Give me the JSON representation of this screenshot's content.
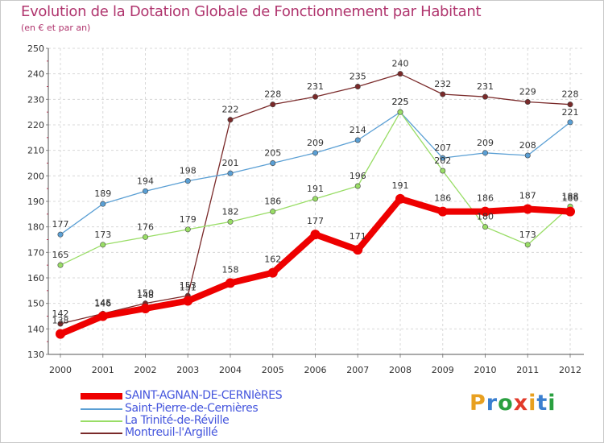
{
  "title": "Evolution de la Dotation Globale de Fonctionnement par Habitant",
  "subtitle": "(en € et par an)",
  "logo": {
    "text": "Proxiti",
    "colors": [
      "#e8a020",
      "#3a7fd0",
      "#2aa040",
      "#e23a2a",
      "#e8a020",
      "#3a7fd0",
      "#2aa040"
    ]
  },
  "chart_data": {
    "type": "line",
    "title": "Evolution de la Dotation Globale de Fonctionnement par Habitant",
    "ylabel": "(en € et par an)",
    "xlabel": "",
    "categories": [
      "2000",
      "2001",
      "2002",
      "2003",
      "2004",
      "2005",
      "2006",
      "2007",
      "2008",
      "2009",
      "2010",
      "2011",
      "2012"
    ],
    "ylim": [
      130,
      250
    ],
    "yticks": [
      "130",
      "140",
      "150",
      "160",
      "170",
      "180",
      "190",
      "200",
      "210",
      "220",
      "230",
      "240",
      "250"
    ],
    "grid": true,
    "legend_position": "bottom-left",
    "series": [
      {
        "name": "Montreuil-l'Argillé",
        "color": "#7a2a2a",
        "emphasis": false,
        "values": [
          142,
          146,
          150,
          153,
          222,
          228,
          231,
          235,
          240,
          232,
          231,
          229,
          228
        ],
        "labels": [
          "142",
          "146",
          "150",
          "153",
          "222",
          "228",
          "231",
          "235",
          "240",
          "232",
          "231",
          "229",
          "228"
        ]
      },
      {
        "name": "Saint-Pierre-de-Cernières",
        "color": "#5a9fd4",
        "emphasis": false,
        "values": [
          177,
          189,
          194,
          198,
          201,
          205,
          209,
          214,
          225,
          207,
          209,
          208,
          221
        ],
        "labels": [
          "177",
          "189",
          "194",
          "198",
          "201",
          "205",
          "209",
          "214",
          "225",
          "207",
          "209",
          "208",
          "221"
        ]
      },
      {
        "name": "La Trinité-de-Réville",
        "color": "#99dd66",
        "emphasis": false,
        "values": [
          165,
          173,
          176,
          179,
          182,
          186,
          191,
          196,
          225,
          202,
          180,
          173,
          188
        ],
        "labels": [
          "165",
          "173",
          "176",
          "179",
          "182",
          "186",
          "191",
          "196",
          "225",
          "202",
          "180",
          "173",
          "188"
        ]
      },
      {
        "name": "SAINT-AGNAN-DE-CERNIèRES",
        "color": "#ee0000",
        "emphasis": true,
        "values": [
          138,
          145,
          148,
          151,
          158,
          162,
          177,
          171,
          191,
          186,
          186,
          187,
          186
        ],
        "labels": [
          "138",
          "145",
          "148",
          "151",
          "158",
          "162",
          "177",
          "171",
          "191",
          "186",
          "186",
          "187",
          "186"
        ]
      }
    ],
    "legend": [
      {
        "name": "SAINT-AGNAN-DE-CERNIèRES",
        "color": "#ee0000"
      },
      {
        "name": "Saint-Pierre-de-Cernières",
        "color": "#5a9fd4"
      },
      {
        "name": "La Trinité-de-Réville",
        "color": "#99dd66"
      },
      {
        "name": "Montreuil-l'Argillé",
        "color": "#7a2a2a"
      }
    ]
  }
}
